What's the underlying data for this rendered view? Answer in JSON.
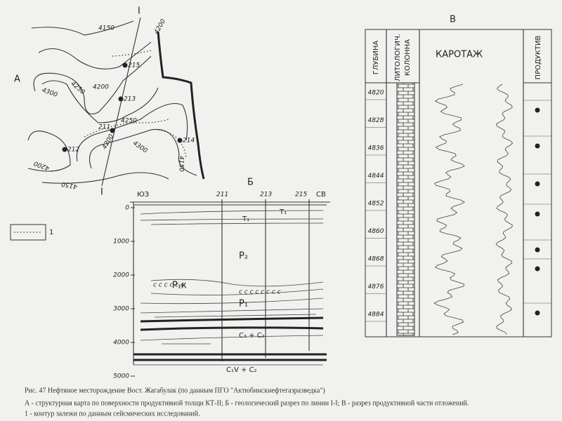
{
  "map": {
    "label": "А",
    "line_top": "I",
    "line_bottom": "I",
    "contours": [
      "4150",
      "4200",
      "4300",
      "4250",
      "4200",
      "4250",
      "4200",
      "4300",
      "4150",
      "4200",
      "4150"
    ],
    "wells": [
      "215",
      "213",
      "211",
      "214",
      "212"
    ],
    "legend": "1"
  },
  "section": {
    "label": "Б",
    "left": "ЮЗ",
    "right": "СВ",
    "wells": [
      "211",
      "213",
      "215"
    ],
    "depths": [
      "0",
      "1000",
      "2000",
      "3000",
      "4000",
      "5000"
    ],
    "layers": [
      "T₁",
      "T₁",
      "P₂",
      "P₁к",
      "P₁",
      "C₃ + C₂",
      "C₁V + C₂"
    ]
  },
  "column": {
    "label": "В",
    "headers": [
      "ГЛУБИНА",
      "ЛИТОЛОГИЧ.",
      "КОЛОННА",
      "КАРОТАЖ",
      "ПРОДУКТИВ"
    ],
    "depths": [
      "4820",
      "4828",
      "4836",
      "4844",
      "4852",
      "4860",
      "4868",
      "4876",
      "4884"
    ]
  },
  "caption": [
    "Рис. 47 Нефтяное месторождение Вост. Жагабулак (по данным ПГО \"Актюбинскнефтегазразведка\")",
    "А - структурная карта по поверхности продуктивной толщи КТ-II; Б - геологический разрез по линии I-I; В - разрез продуктивной части отложений.",
    "1 - контур залежи по данным сейсмических исследований."
  ]
}
